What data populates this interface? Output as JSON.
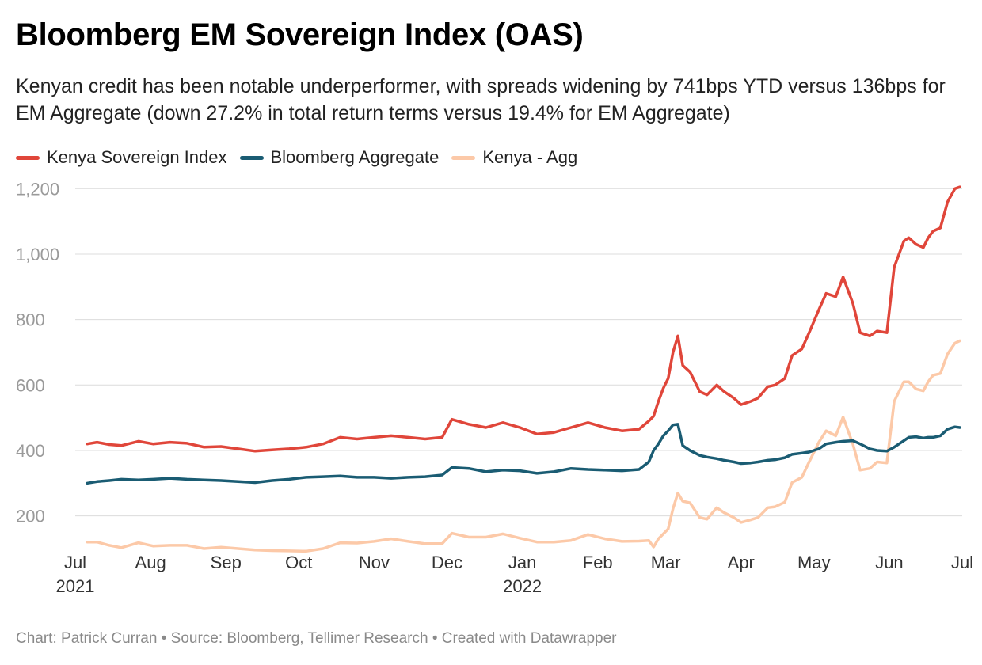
{
  "header": {
    "title": "Bloomberg EM Sovereign Index (OAS)",
    "subtitle": "Kenyan credit has been notable underperformer, with spreads widening by 741bps YTD versus 136bps for EM Aggregate (down 27.2% in total return terms versus 19.4% for EM Aggregate)"
  },
  "footer": {
    "credit": "Chart: Patrick Curran • Source: Bloomberg, Tellimer Research • Created with Datawrapper"
  },
  "chart_data": {
    "type": "line",
    "title": "Bloomberg EM Sovereign Index (OAS)",
    "xlabel": "",
    "ylabel": "",
    "grid": true,
    "legend_position": "top-left",
    "ylim": [
      100,
      1220
    ],
    "y_ticks": [
      200,
      400,
      600,
      800,
      1000,
      1200
    ],
    "y_tick_labels": [
      "200",
      "400",
      "600",
      "800",
      "1,000",
      "1,200"
    ],
    "x_range": [
      "2021-07-01",
      "2022-07-01"
    ],
    "x_ticks": [
      {
        "date": "2021-07-01",
        "label": "Jul",
        "year": "2021"
      },
      {
        "date": "2021-08-01",
        "label": "Aug",
        "year": ""
      },
      {
        "date": "2021-09-01",
        "label": "Sep",
        "year": ""
      },
      {
        "date": "2021-10-01",
        "label": "Oct",
        "year": ""
      },
      {
        "date": "2021-11-01",
        "label": "Nov",
        "year": ""
      },
      {
        "date": "2021-12-01",
        "label": "Dec",
        "year": ""
      },
      {
        "date": "2022-01-01",
        "label": "Jan",
        "year": "2022"
      },
      {
        "date": "2022-02-01",
        "label": "Feb",
        "year": ""
      },
      {
        "date": "2022-03-01",
        "label": "Mar",
        "year": ""
      },
      {
        "date": "2022-04-01",
        "label": "Apr",
        "year": ""
      },
      {
        "date": "2022-05-01",
        "label": "May",
        "year": ""
      },
      {
        "date": "2022-06-01",
        "label": "Jun",
        "year": ""
      },
      {
        "date": "2022-07-01",
        "label": "Jul",
        "year": ""
      }
    ],
    "series": [
      {
        "name": "Kenya Sovereign Index",
        "color": "#e0463a",
        "x": [
          "2021-07-06",
          "2021-07-10",
          "2021-07-15",
          "2021-07-20",
          "2021-07-27",
          "2021-08-02",
          "2021-08-09",
          "2021-08-16",
          "2021-08-23",
          "2021-08-30",
          "2021-09-06",
          "2021-09-13",
          "2021-09-20",
          "2021-09-27",
          "2021-10-04",
          "2021-10-11",
          "2021-10-18",
          "2021-10-25",
          "2021-11-01",
          "2021-11-08",
          "2021-11-15",
          "2021-11-22",
          "2021-11-29",
          "2021-12-03",
          "2021-12-10",
          "2021-12-17",
          "2021-12-24",
          "2021-12-31",
          "2022-01-07",
          "2022-01-14",
          "2022-01-21",
          "2022-01-28",
          "2022-02-04",
          "2022-02-11",
          "2022-02-18",
          "2022-02-22",
          "2022-02-24",
          "2022-02-26",
          "2022-02-28",
          "2022-03-02",
          "2022-03-04",
          "2022-03-06",
          "2022-03-08",
          "2022-03-11",
          "2022-03-15",
          "2022-03-18",
          "2022-03-22",
          "2022-03-25",
          "2022-03-29",
          "2022-04-01",
          "2022-04-05",
          "2022-04-08",
          "2022-04-12",
          "2022-04-15",
          "2022-04-19",
          "2022-04-22",
          "2022-04-26",
          "2022-04-29",
          "2022-05-03",
          "2022-05-06",
          "2022-05-10",
          "2022-05-13",
          "2022-05-17",
          "2022-05-20",
          "2022-05-24",
          "2022-05-27",
          "2022-05-31",
          "2022-06-03",
          "2022-06-07",
          "2022-06-09",
          "2022-06-12",
          "2022-06-15",
          "2022-06-17",
          "2022-06-19",
          "2022-06-22",
          "2022-06-25",
          "2022-06-28",
          "2022-06-30"
        ],
        "values": [
          420,
          425,
          418,
          415,
          428,
          420,
          425,
          422,
          410,
          412,
          405,
          398,
          402,
          405,
          410,
          420,
          440,
          435,
          440,
          445,
          440,
          435,
          440,
          495,
          480,
          470,
          485,
          470,
          450,
          455,
          470,
          485,
          470,
          460,
          465,
          490,
          505,
          550,
          590,
          620,
          700,
          750,
          660,
          640,
          580,
          570,
          600,
          580,
          560,
          540,
          550,
          560,
          595,
          600,
          620,
          690,
          710,
          760,
          830,
          880,
          870,
          930,
          850,
          760,
          750,
          765,
          760,
          960,
          1040,
          1050,
          1030,
          1020,
          1050,
          1070,
          1080,
          1160,
          1200,
          1205
        ]
      },
      {
        "name": "Bloomberg Aggregate",
        "color": "#1a5c73",
        "x": [
          "2021-07-06",
          "2021-07-10",
          "2021-07-15",
          "2021-07-20",
          "2021-07-27",
          "2021-08-02",
          "2021-08-09",
          "2021-08-16",
          "2021-08-23",
          "2021-08-30",
          "2021-09-06",
          "2021-09-13",
          "2021-09-20",
          "2021-09-27",
          "2021-10-04",
          "2021-10-11",
          "2021-10-18",
          "2021-10-25",
          "2021-11-01",
          "2021-11-08",
          "2021-11-15",
          "2021-11-22",
          "2021-11-29",
          "2021-12-03",
          "2021-12-10",
          "2021-12-17",
          "2021-12-24",
          "2021-12-31",
          "2022-01-07",
          "2022-01-14",
          "2022-01-21",
          "2022-01-28",
          "2022-02-04",
          "2022-02-11",
          "2022-02-18",
          "2022-02-22",
          "2022-02-24",
          "2022-02-26",
          "2022-02-28",
          "2022-03-02",
          "2022-03-04",
          "2022-03-06",
          "2022-03-08",
          "2022-03-11",
          "2022-03-15",
          "2022-03-18",
          "2022-03-22",
          "2022-03-25",
          "2022-03-29",
          "2022-04-01",
          "2022-04-05",
          "2022-04-08",
          "2022-04-12",
          "2022-04-15",
          "2022-04-19",
          "2022-04-22",
          "2022-04-26",
          "2022-04-29",
          "2022-05-03",
          "2022-05-06",
          "2022-05-10",
          "2022-05-13",
          "2022-05-17",
          "2022-05-20",
          "2022-05-24",
          "2022-05-27",
          "2022-05-31",
          "2022-06-03",
          "2022-06-07",
          "2022-06-09",
          "2022-06-12",
          "2022-06-15",
          "2022-06-17",
          "2022-06-19",
          "2022-06-22",
          "2022-06-25",
          "2022-06-28",
          "2022-06-30"
        ],
        "values": [
          300,
          305,
          308,
          312,
          310,
          312,
          315,
          312,
          310,
          308,
          305,
          302,
          308,
          312,
          318,
          320,
          322,
          318,
          318,
          315,
          318,
          320,
          325,
          348,
          345,
          335,
          340,
          338,
          330,
          335,
          345,
          342,
          340,
          338,
          342,
          365,
          400,
          420,
          445,
          460,
          478,
          480,
          415,
          400,
          385,
          380,
          375,
          370,
          365,
          360,
          362,
          365,
          370,
          372,
          378,
          388,
          392,
          395,
          405,
          420,
          425,
          428,
          430,
          420,
          405,
          400,
          398,
          410,
          430,
          440,
          442,
          438,
          440,
          440,
          445,
          465,
          472,
          470
        ]
      },
      {
        "name": "Kenya - Agg",
        "color": "#fcc9a8",
        "x": [
          "2021-07-06",
          "2021-07-10",
          "2021-07-15",
          "2021-07-20",
          "2021-07-27",
          "2021-08-02",
          "2021-08-09",
          "2021-08-16",
          "2021-08-23",
          "2021-08-30",
          "2021-09-06",
          "2021-09-13",
          "2021-09-20",
          "2021-09-27",
          "2021-10-04",
          "2021-10-11",
          "2021-10-18",
          "2021-10-25",
          "2021-11-01",
          "2021-11-08",
          "2021-11-15",
          "2021-11-22",
          "2021-11-29",
          "2021-12-03",
          "2021-12-10",
          "2021-12-17",
          "2021-12-24",
          "2021-12-31",
          "2022-01-07",
          "2022-01-14",
          "2022-01-21",
          "2022-01-28",
          "2022-02-04",
          "2022-02-11",
          "2022-02-18",
          "2022-02-22",
          "2022-02-24",
          "2022-02-26",
          "2022-02-28",
          "2022-03-02",
          "2022-03-04",
          "2022-03-06",
          "2022-03-08",
          "2022-03-11",
          "2022-03-15",
          "2022-03-18",
          "2022-03-22",
          "2022-03-25",
          "2022-03-29",
          "2022-04-01",
          "2022-04-05",
          "2022-04-08",
          "2022-04-12",
          "2022-04-15",
          "2022-04-19",
          "2022-04-22",
          "2022-04-26",
          "2022-04-29",
          "2022-05-03",
          "2022-05-06",
          "2022-05-10",
          "2022-05-13",
          "2022-05-17",
          "2022-05-20",
          "2022-05-24",
          "2022-05-27",
          "2022-05-31",
          "2022-06-03",
          "2022-06-07",
          "2022-06-09",
          "2022-06-12",
          "2022-06-15",
          "2022-06-17",
          "2022-06-19",
          "2022-06-22",
          "2022-06-25",
          "2022-06-28",
          "2022-06-30"
        ],
        "values": [
          120,
          120,
          110,
          103,
          118,
          108,
          110,
          110,
          100,
          104,
          100,
          96,
          94,
          93,
          92,
          100,
          118,
          117,
          122,
          130,
          122,
          115,
          115,
          147,
          135,
          135,
          145,
          132,
          120,
          120,
          125,
          143,
          130,
          122,
          123,
          125,
          105,
          130,
          145,
          160,
          222,
          270,
          245,
          240,
          195,
          190,
          225,
          210,
          195,
          180,
          188,
          195,
          225,
          228,
          242,
          302,
          318,
          365,
          425,
          460,
          445,
          502,
          420,
          340,
          345,
          365,
          362,
          550,
          610,
          610,
          588,
          582,
          610,
          630,
          635,
          695,
          728,
          735
        ]
      }
    ]
  }
}
